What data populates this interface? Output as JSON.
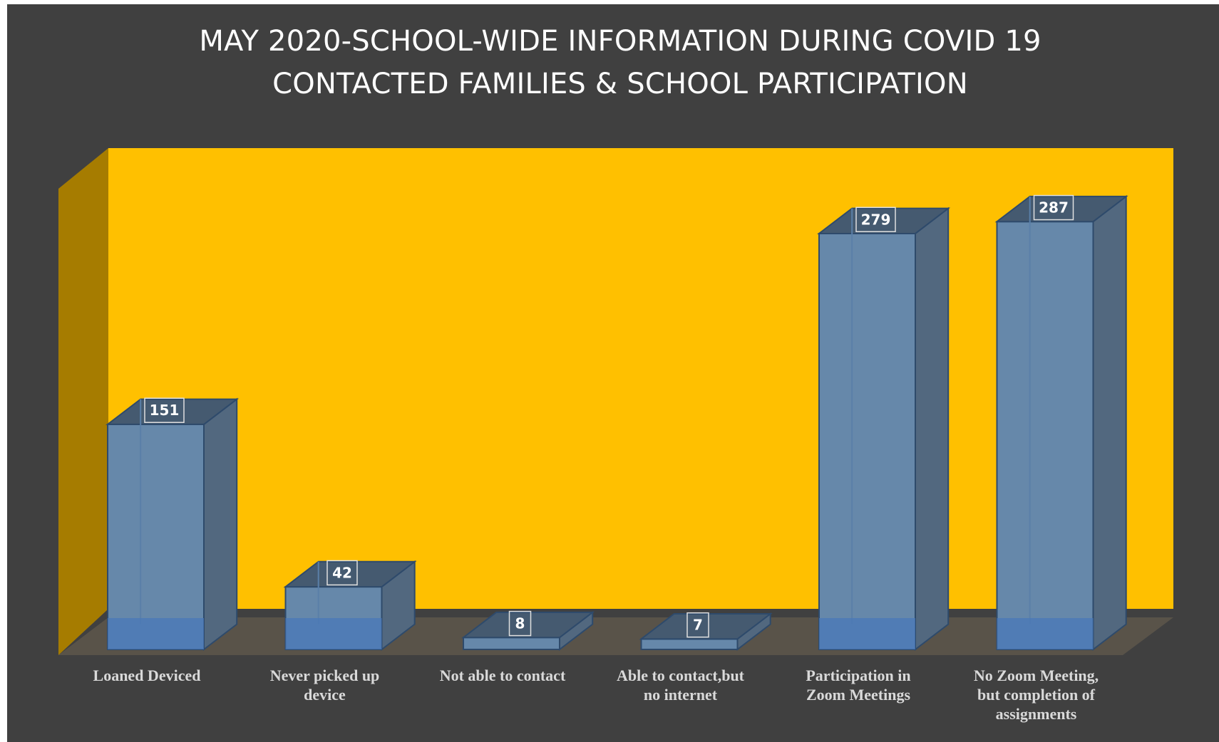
{
  "colors": {
    "background": "#404040",
    "back_wall": "#ffc000",
    "side_wall": "#a67c00",
    "floor": "#595349",
    "bar_front": "#6688aa",
    "bar_side": "#52687f",
    "bar_top": "#455a70",
    "label_box": "#e0e0e0",
    "text": "#ffffff",
    "axis_text": "#d9d9d9"
  },
  "chart_data": {
    "type": "bar",
    "title": "MAY 2020-SCHOOL-WIDE INFORMATION DURING COVID 19",
    "subtitle": "CONTACTED FAMILIES & SCHOOL PARTICIPATION",
    "categories": [
      [
        "Loaned Deviced"
      ],
      [
        "Never picked up",
        "device"
      ],
      [
        "Not able to contact"
      ],
      [
        "Able to contact,but",
        "no internet"
      ],
      [
        "Participation in",
        "Zoom Meetings"
      ],
      [
        "No Zoom Meeting,",
        "but completion of",
        "assignments"
      ]
    ],
    "values": [
      151,
      42,
      8,
      7,
      279,
      287
    ],
    "ylim": [
      0,
      300
    ],
    "grid": false,
    "legend": "none",
    "style": "3d-column"
  }
}
